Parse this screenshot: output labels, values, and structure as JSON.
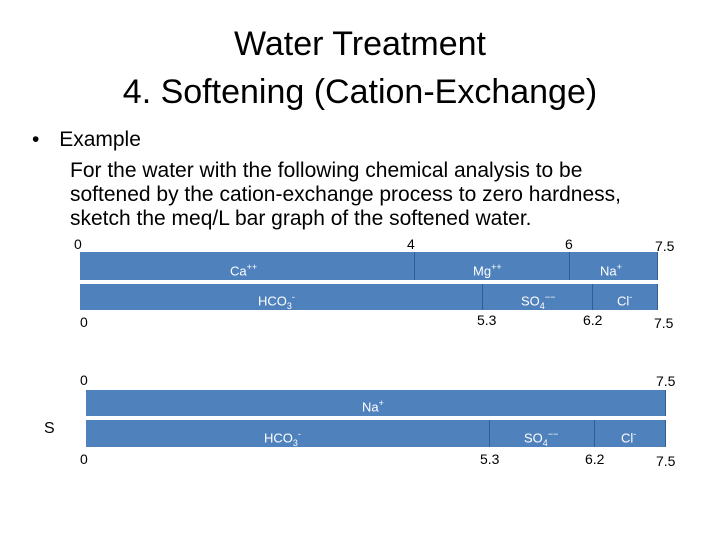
{
  "title": {
    "line1": "Water Treatment",
    "line2": "4. Softening (Cation-Exchange)"
  },
  "example": {
    "bullet": "•",
    "heading": "Example",
    "lines": [
      "For the water with the following chemical analysis to be",
      "softened by the cation-exchange process to zero hardness,",
      "sketch the meq/L bar graph of the softened water."
    ]
  },
  "colors": {
    "bar": "#4f81bd",
    "bar_text": "#ffffff"
  },
  "diagrams": {
    "raw": {
      "cation_ticks": [
        "0",
        "4",
        "6",
        "7.5"
      ],
      "cations": [
        {
          "name": "Ca",
          "charge": "++",
          "from": 0,
          "to": 4
        },
        {
          "name": "Mg",
          "charge": "++",
          "from": 4,
          "to": 6
        },
        {
          "name": "Na",
          "charge": "+",
          "from": 6,
          "to": 7.5
        }
      ],
      "anion_ticks": [
        "0",
        "5.3",
        "6.2",
        "7.5"
      ],
      "anions": [
        {
          "name": "HCO",
          "sub": "3",
          "charge": "-",
          "from": 0,
          "to": 5.3
        },
        {
          "name": "SO",
          "sub": "4",
          "charge": "−−",
          "from": 5.3,
          "to": 6.2
        },
        {
          "name": "Cl",
          "charge": "-",
          "from": 6.2,
          "to": 7.5
        }
      ]
    },
    "softened": {
      "side_label": "S",
      "cation_ticks": [
        "0",
        "7.5"
      ],
      "cations": [
        {
          "name": "Na",
          "charge": "+",
          "from": 0,
          "to": 7.5
        }
      ],
      "anion_ticks": [
        "0",
        "5.3",
        "6.2",
        "7.5"
      ],
      "anions": [
        {
          "name": "HCO",
          "sub": "3",
          "charge": "-",
          "from": 0,
          "to": 5.3
        },
        {
          "name": "SO",
          "sub": "4",
          "charge": "−−",
          "from": 5.3,
          "to": 6.2
        },
        {
          "name": "Cl",
          "charge": "-",
          "from": 6.2,
          "to": 7.5
        }
      ]
    }
  }
}
